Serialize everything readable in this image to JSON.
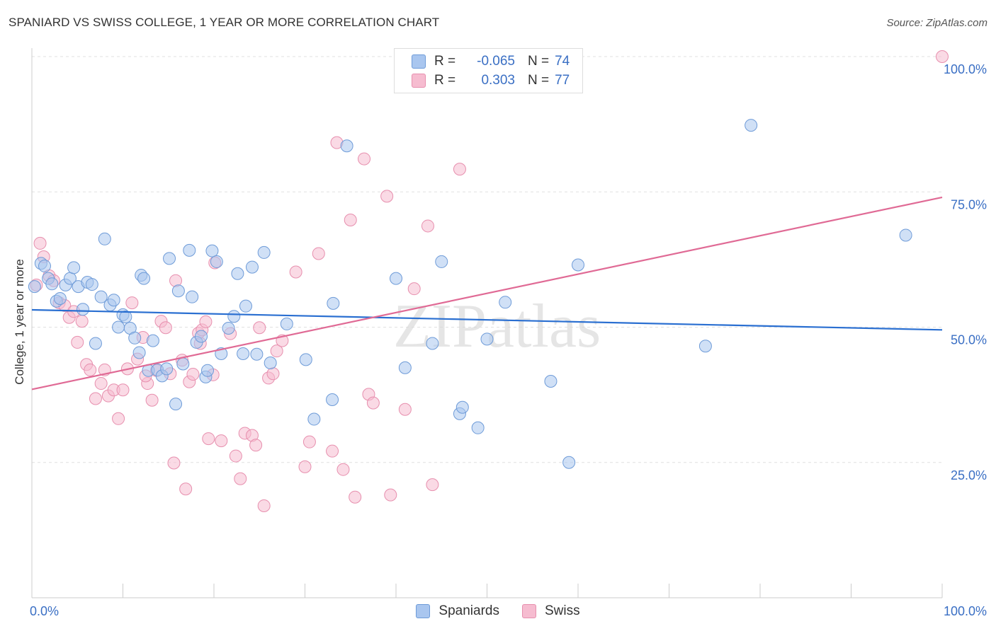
{
  "title": "SPANIARD VS SWISS COLLEGE, 1 YEAR OR MORE CORRELATION CHART",
  "source": "Source: ZipAtlas.com",
  "watermark": "ZIPatlas",
  "colors": {
    "blue_fill": "#a9c6ef",
    "blue_stroke": "#6e9bd8",
    "blue_line": "#2a6fd1",
    "pink_fill": "#f6bcd0",
    "pink_stroke": "#e78fae",
    "pink_line": "#e06a95",
    "tick_text": "#3a6fc4",
    "grid": "#e0e0e0"
  },
  "legend": {
    "rows": [
      {
        "r_label": "R =",
        "r_value": "-0.065",
        "n_label": "N =",
        "n_value": "74"
      },
      {
        "r_label": "R =",
        "r_value": "0.303",
        "n_label": "N =",
        "n_value": "77"
      }
    ],
    "bottom": [
      "Spaniards",
      "Swiss"
    ]
  },
  "chart_data": {
    "type": "scatter",
    "title": "SPANIARD VS SWISS COLLEGE, 1 YEAR OR MORE CORRELATION CHART",
    "xlabel": "",
    "ylabel": "College, 1 year or more",
    "xlim": [
      0,
      100
    ],
    "ylim": [
      0,
      102
    ],
    "x_tick_labels": [
      "0.0%",
      "100.0%"
    ],
    "y_ticks": [
      25,
      50,
      75,
      100
    ],
    "y_tick_labels": [
      "25.0%",
      "50.0%",
      "75.0%",
      "100.0%"
    ],
    "grid": true,
    "legend_position": "top-center",
    "series": [
      {
        "name": "Spaniards",
        "color": "#a9c6ef",
        "trend": {
          "x0": 0,
          "y0": 53.2,
          "x1": 100,
          "y1": 49.5
        },
        "points": [
          [
            0.3,
            57.5
          ],
          [
            1.0,
            61.8
          ],
          [
            1.4,
            61.3
          ],
          [
            1.8,
            59.0
          ],
          [
            2.2,
            58.0
          ],
          [
            2.7,
            54.8
          ],
          [
            3.1,
            55.3
          ],
          [
            3.7,
            57.8
          ],
          [
            4.2,
            59.0
          ],
          [
            4.6,
            61.0
          ],
          [
            5.1,
            57.5
          ],
          [
            5.6,
            53.3
          ],
          [
            6.1,
            58.3
          ],
          [
            6.6,
            57.9
          ],
          [
            7.0,
            47.0
          ],
          [
            7.6,
            55.6
          ],
          [
            8.0,
            66.3
          ],
          [
            8.6,
            54.1
          ],
          [
            9.0,
            55.0
          ],
          [
            9.5,
            50.0
          ],
          [
            10.0,
            52.3
          ],
          [
            10.3,
            51.9
          ],
          [
            10.8,
            49.8
          ],
          [
            11.3,
            48.0
          ],
          [
            11.8,
            45.3
          ],
          [
            12.0,
            59.6
          ],
          [
            12.3,
            59.0
          ],
          [
            12.8,
            42.0
          ],
          [
            13.3,
            47.5
          ],
          [
            13.8,
            42.1
          ],
          [
            14.3,
            41.0
          ],
          [
            14.8,
            42.3
          ],
          [
            15.1,
            62.7
          ],
          [
            15.8,
            35.8
          ],
          [
            16.1,
            56.7
          ],
          [
            16.6,
            43.2
          ],
          [
            17.3,
            64.2
          ],
          [
            17.6,
            55.6
          ],
          [
            18.1,
            47.2
          ],
          [
            18.6,
            48.3
          ],
          [
            19.1,
            40.8
          ],
          [
            19.3,
            42.0
          ],
          [
            19.8,
            64.1
          ],
          [
            20.3,
            62.1
          ],
          [
            20.8,
            45.1
          ],
          [
            21.6,
            49.8
          ],
          [
            22.2,
            52.0
          ],
          [
            22.6,
            59.9
          ],
          [
            23.2,
            45.1
          ],
          [
            23.5,
            53.9
          ],
          [
            24.2,
            61.1
          ],
          [
            24.7,
            45.0
          ],
          [
            25.5,
            63.8
          ],
          [
            26.2,
            43.4
          ],
          [
            28.0,
            50.6
          ],
          [
            30.1,
            44.0
          ],
          [
            31.0,
            33.0
          ],
          [
            33.0,
            36.6
          ],
          [
            33.1,
            54.4
          ],
          [
            34.6,
            83.5
          ],
          [
            40.0,
            59.0
          ],
          [
            41.0,
            42.5
          ],
          [
            44.0,
            47.0
          ],
          [
            45.0,
            62.1
          ],
          [
            47.0,
            34.0
          ],
          [
            47.3,
            35.2
          ],
          [
            49.0,
            31.4
          ],
          [
            50.0,
            47.8
          ],
          [
            52.0,
            54.6
          ],
          [
            57.0,
            40.0
          ],
          [
            59.0,
            25.0
          ],
          [
            60.0,
            61.5
          ],
          [
            74.0,
            46.5
          ],
          [
            79.0,
            87.3
          ],
          [
            96.0,
            67.0
          ]
        ]
      },
      {
        "name": "Swiss",
        "color": "#f6bcd0",
        "trend": {
          "x0": 0,
          "y0": 38.5,
          "x1": 100,
          "y1": 74.0
        },
        "points": [
          [
            0.5,
            57.8
          ],
          [
            0.9,
            65.5
          ],
          [
            1.3,
            63.0
          ],
          [
            1.9,
            59.5
          ],
          [
            2.4,
            58.6
          ],
          [
            3.0,
            54.5
          ],
          [
            3.6,
            54.0
          ],
          [
            4.1,
            51.8
          ],
          [
            4.6,
            52.9
          ],
          [
            5.0,
            47.2
          ],
          [
            5.5,
            51.1
          ],
          [
            6.0,
            43.1
          ],
          [
            6.4,
            42.1
          ],
          [
            7.0,
            36.8
          ],
          [
            7.6,
            39.6
          ],
          [
            8.0,
            42.1
          ],
          [
            8.4,
            37.3
          ],
          [
            9.0,
            38.4
          ],
          [
            9.5,
            33.1
          ],
          [
            10.0,
            38.4
          ],
          [
            10.5,
            42.3
          ],
          [
            11.0,
            54.5
          ],
          [
            11.6,
            44.1
          ],
          [
            12.2,
            48.1
          ],
          [
            12.7,
            39.6
          ],
          [
            13.2,
            36.5
          ],
          [
            13.7,
            42.0
          ],
          [
            14.2,
            51.1
          ],
          [
            14.7,
            49.9
          ],
          [
            15.2,
            41.4
          ],
          [
            15.6,
            24.9
          ],
          [
            15.8,
            58.6
          ],
          [
            16.5,
            43.9
          ],
          [
            16.9,
            20.1
          ],
          [
            17.3,
            39.9
          ],
          [
            17.7,
            41.3
          ],
          [
            18.3,
            48.9
          ],
          [
            18.7,
            49.5
          ],
          [
            19.1,
            51.0
          ],
          [
            19.4,
            29.4
          ],
          [
            19.9,
            41.2
          ],
          [
            20.1,
            61.9
          ],
          [
            20.8,
            29.0
          ],
          [
            21.8,
            48.8
          ],
          [
            22.4,
            26.2
          ],
          [
            22.9,
            22.0
          ],
          [
            23.4,
            30.4
          ],
          [
            24.2,
            30.0
          ],
          [
            24.6,
            28.2
          ],
          [
            25.0,
            49.9
          ],
          [
            25.5,
            17.0
          ],
          [
            26.0,
            40.6
          ],
          [
            26.5,
            41.4
          ],
          [
            26.9,
            45.6
          ],
          [
            27.5,
            47.5
          ],
          [
            29.0,
            60.2
          ],
          [
            30.0,
            24.2
          ],
          [
            30.5,
            28.8
          ],
          [
            31.5,
            63.6
          ],
          [
            33.0,
            27.1
          ],
          [
            33.5,
            84.1
          ],
          [
            34.2,
            23.7
          ],
          [
            35.0,
            69.8
          ],
          [
            35.5,
            18.6
          ],
          [
            36.5,
            81.1
          ],
          [
            37.0,
            37.6
          ],
          [
            37.5,
            36.0
          ],
          [
            39.0,
            74.2
          ],
          [
            39.4,
            19.0
          ],
          [
            41.0,
            34.8
          ],
          [
            42.0,
            57.1
          ],
          [
            43.5,
            68.7
          ],
          [
            44.0,
            20.9
          ],
          [
            47.0,
            79.2
          ],
          [
            100.0,
            100.0
          ],
          [
            12.5,
            41.0
          ],
          [
            18.5,
            47.0
          ]
        ]
      }
    ]
  }
}
